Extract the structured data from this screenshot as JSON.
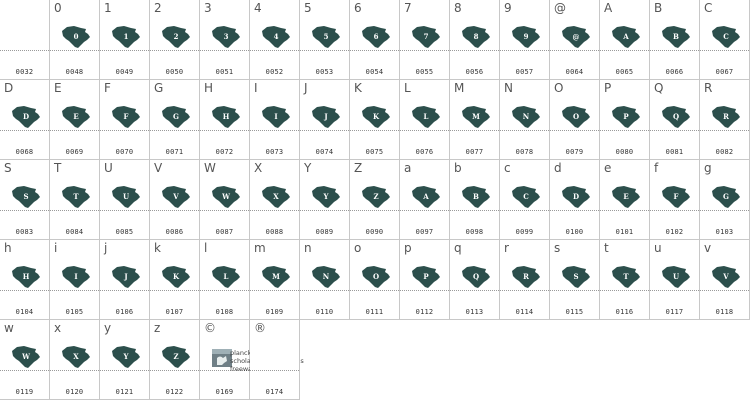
{
  "cells": [
    {
      "char": "",
      "code": "0032",
      "glyph": ""
    },
    {
      "char": "0",
      "code": "0048",
      "glyph": "0"
    },
    {
      "char": "1",
      "code": "0049",
      "glyph": "1"
    },
    {
      "char": "2",
      "code": "0050",
      "glyph": "2"
    },
    {
      "char": "3",
      "code": "0051",
      "glyph": "3"
    },
    {
      "char": "4",
      "code": "0052",
      "glyph": "4"
    },
    {
      "char": "5",
      "code": "0053",
      "glyph": "5"
    },
    {
      "char": "6",
      "code": "0054",
      "glyph": "6"
    },
    {
      "char": "7",
      "code": "0055",
      "glyph": "7"
    },
    {
      "char": "8",
      "code": "0056",
      "glyph": "8"
    },
    {
      "char": "9",
      "code": "0057",
      "glyph": "9"
    },
    {
      "char": "@",
      "code": "0064",
      "glyph": "@"
    },
    {
      "char": "A",
      "code": "0065",
      "glyph": "A"
    },
    {
      "char": "B",
      "code": "0066",
      "glyph": "B"
    },
    {
      "char": "C",
      "code": "0067",
      "glyph": "C"
    },
    {
      "char": "D",
      "code": "0068",
      "glyph": "D"
    },
    {
      "char": "E",
      "code": "0069",
      "glyph": "E"
    },
    {
      "char": "F",
      "code": "0070",
      "glyph": "F"
    },
    {
      "char": "G",
      "code": "0071",
      "glyph": "G"
    },
    {
      "char": "H",
      "code": "0072",
      "glyph": "H"
    },
    {
      "char": "I",
      "code": "0073",
      "glyph": "I"
    },
    {
      "char": "J",
      "code": "0074",
      "glyph": "J"
    },
    {
      "char": "K",
      "code": "0075",
      "glyph": "K"
    },
    {
      "char": "L",
      "code": "0076",
      "glyph": "L"
    },
    {
      "char": "M",
      "code": "0077",
      "glyph": "M"
    },
    {
      "char": "N",
      "code": "0078",
      "glyph": "N"
    },
    {
      "char": "O",
      "code": "0079",
      "glyph": "O"
    },
    {
      "char": "P",
      "code": "0080",
      "glyph": "P"
    },
    {
      "char": "Q",
      "code": "0081",
      "glyph": "Q"
    },
    {
      "char": "R",
      "code": "0082",
      "glyph": "R"
    },
    {
      "char": "S",
      "code": "0083",
      "glyph": "S"
    },
    {
      "char": "T",
      "code": "0084",
      "glyph": "T"
    },
    {
      "char": "U",
      "code": "0085",
      "glyph": "U"
    },
    {
      "char": "V",
      "code": "0086",
      "glyph": "V"
    },
    {
      "char": "W",
      "code": "0087",
      "glyph": "W"
    },
    {
      "char": "X",
      "code": "0088",
      "glyph": "X"
    },
    {
      "char": "Y",
      "code": "0089",
      "glyph": "Y"
    },
    {
      "char": "Z",
      "code": "0090",
      "glyph": "Z"
    },
    {
      "char": "a",
      "code": "0097",
      "glyph": "A"
    },
    {
      "char": "b",
      "code": "0098",
      "glyph": "B"
    },
    {
      "char": "c",
      "code": "0099",
      "glyph": "C"
    },
    {
      "char": "d",
      "code": "0100",
      "glyph": "D"
    },
    {
      "char": "e",
      "code": "0101",
      "glyph": "E"
    },
    {
      "char": "f",
      "code": "0102",
      "glyph": "F"
    },
    {
      "char": "g",
      "code": "0103",
      "glyph": "G"
    },
    {
      "char": "h",
      "code": "0104",
      "glyph": "H"
    },
    {
      "char": "i",
      "code": "0105",
      "glyph": "I"
    },
    {
      "char": "j",
      "code": "0106",
      "glyph": "J"
    },
    {
      "char": "k",
      "code": "0107",
      "glyph": "K"
    },
    {
      "char": "l",
      "code": "0108",
      "glyph": "L"
    },
    {
      "char": "m",
      "code": "0109",
      "glyph": "M"
    },
    {
      "char": "n",
      "code": "0110",
      "glyph": "N"
    },
    {
      "char": "o",
      "code": "0111",
      "glyph": "O"
    },
    {
      "char": "p",
      "code": "0112",
      "glyph": "P"
    },
    {
      "char": "q",
      "code": "0113",
      "glyph": "Q"
    },
    {
      "char": "r",
      "code": "0114",
      "glyph": "R"
    },
    {
      "char": "s",
      "code": "0115",
      "glyph": "S"
    },
    {
      "char": "t",
      "code": "0116",
      "glyph": "T"
    },
    {
      "char": "u",
      "code": "0117",
      "glyph": "U"
    },
    {
      "char": "v",
      "code": "0118",
      "glyph": "V"
    },
    {
      "char": "w",
      "code": "0119",
      "glyph": "W"
    },
    {
      "char": "x",
      "code": "0120",
      "glyph": "X"
    },
    {
      "char": "y",
      "code": "0121",
      "glyph": "Y"
    },
    {
      "char": "z",
      "code": "0122",
      "glyph": "Z"
    },
    {
      "char": "©",
      "code": "0169",
      "glyph": "",
      "credit": [
        "planck foam",
        "scholarly dragon press",
        "freeware"
      ]
    },
    {
      "char": "®",
      "code": "0174",
      "glyph": ""
    }
  ],
  "colors": {
    "glyph_fill": "#2c4f4c",
    "glyph_letter": "#ffffff",
    "grid_line": "#c8c8c8"
  },
  "icons": {
    "map_glyph": "state-silhouette-icon",
    "logo": "publisher-logo-icon"
  }
}
